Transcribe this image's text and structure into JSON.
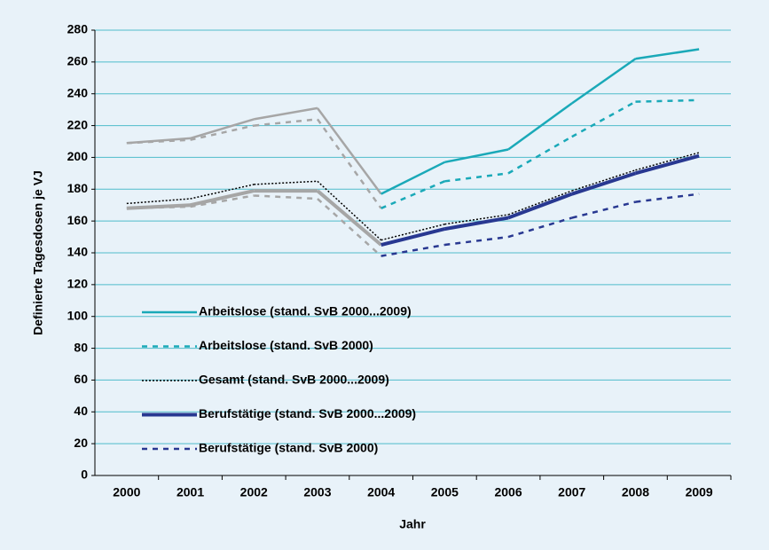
{
  "chart_data": {
    "type": "line",
    "x_label": "Jahr",
    "y_label": "Definierte Tagesdosen je VJ",
    "categories": [
      "2000",
      "2001",
      "2002",
      "2003",
      "2004",
      "2005",
      "2006",
      "2007",
      "2008",
      "2009"
    ],
    "ylim": [
      0,
      280
    ],
    "yticks": [
      0,
      20,
      40,
      60,
      80,
      100,
      120,
      140,
      160,
      180,
      200,
      220,
      240,
      260,
      280
    ],
    "grid": true,
    "grid_color": "#4fbccb",
    "legend": "lower left",
    "series": [
      {
        "name": "Arbeitslose (stand. SvB 2000...2009)",
        "color": "#1aa9b8",
        "dash": "solid",
        "width": 2.5,
        "segment_colors": [
          "#a6a6a6",
          "#a6a6a6",
          "#a6a6a6",
          "#a6a6a6",
          "#1aa9b8",
          "#1aa9b8",
          "#1aa9b8",
          "#1aa9b8",
          "#1aa9b8"
        ],
        "values": [
          209,
          212,
          224,
          231,
          177,
          197,
          205,
          234,
          262,
          268
        ]
      },
      {
        "name": "Arbeitslose (stand. SvB 2000)",
        "color": "#1aa9b8",
        "dash": "dashed",
        "width": 2.5,
        "segment_colors": [
          "#a6a6a6",
          "#a6a6a6",
          "#a6a6a6",
          "#a6a6a6",
          "#1aa9b8",
          "#1aa9b8",
          "#1aa9b8",
          "#1aa9b8",
          "#1aa9b8"
        ],
        "values": [
          209,
          211,
          220,
          224,
          168,
          185,
          190,
          213,
          235,
          236
        ]
      },
      {
        "name": "Gesamt (stand. SvB 2000...2009)",
        "color": "#000000",
        "dash": "dotted",
        "width": 1.5,
        "segment_colors": [
          "#000000",
          "#000000",
          "#000000",
          "#000000",
          "#000000",
          "#000000",
          "#000000",
          "#000000",
          "#000000"
        ],
        "values": [
          171,
          174,
          183,
          185,
          148,
          158,
          164,
          179,
          192,
          203
        ]
      },
      {
        "name": "Berufstätige (stand. SvB 2000...2009)",
        "color": "#283891",
        "dash": "solid",
        "width": 4,
        "segment_colors": [
          "#a6a6a6",
          "#a6a6a6",
          "#a6a6a6",
          "#a6a6a6",
          "#283891",
          "#283891",
          "#283891",
          "#283891",
          "#283891"
        ],
        "values": [
          168,
          170,
          179,
          179,
          145,
          155,
          162,
          177,
          190,
          201
        ]
      },
      {
        "name": "Berufstätige (stand. SvB 2000)",
        "color": "#283891",
        "dash": "dashed",
        "width": 2.5,
        "segment_colors": [
          "#a6a6a6",
          "#a6a6a6",
          "#a6a6a6",
          "#a6a6a6",
          "#283891",
          "#283891",
          "#283891",
          "#283891",
          "#283891"
        ],
        "values": [
          168,
          169,
          176,
          174,
          138,
          145,
          150,
          162,
          172,
          177
        ]
      }
    ]
  }
}
